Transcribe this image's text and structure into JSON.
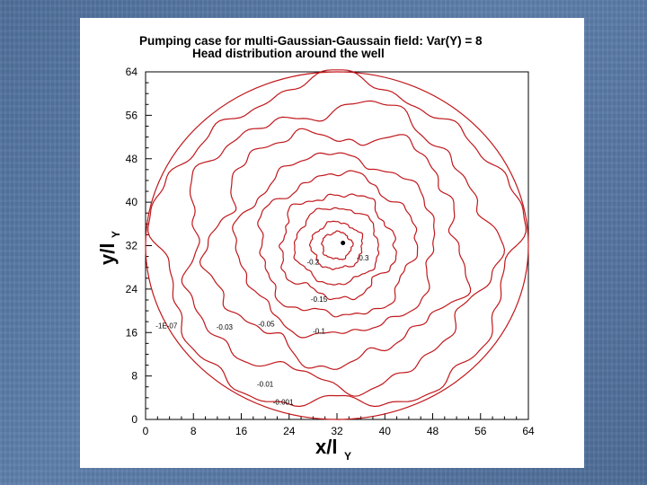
{
  "chart_data": {
    "type": "contour",
    "title": "Pumping case for multi-Gaussian-Gaussain field: Var(Y) = 8",
    "subtitle": "Head distribution around the well",
    "xlabel": "x/l",
    "xlabel_sub": "Y",
    "ylabel": "y/l",
    "ylabel_sub": "Y",
    "xlim": [
      0,
      64
    ],
    "ylim": [
      0,
      64
    ],
    "xticks": [
      0,
      8,
      16,
      24,
      32,
      40,
      48,
      56,
      64
    ],
    "yticks": [
      0,
      8,
      16,
      24,
      32,
      40,
      48,
      56,
      64
    ],
    "grid": false,
    "line_color": "#c0181c",
    "domain_circle": {
      "center": [
        32,
        32
      ],
      "radius": 32
    },
    "well": [
      33,
      32.5
    ],
    "contours": [
      {
        "level": "-1E-07",
        "radius": 30.0,
        "label_at": [
          3.5,
          17.3
        ]
      },
      {
        "level": "-0.001",
        "radius": 25.5,
        "label_at": [
          23.0,
          3.2
        ]
      },
      {
        "level": "-0.01",
        "radius": 21.0,
        "label_at": [
          20.0,
          6.5
        ]
      },
      {
        "level": "-0.03",
        "radius": 16.5,
        "label_at": [
          13.2,
          17.0
        ]
      },
      {
        "level": "-0.05",
        "radius": 13.0,
        "label_at": [
          20.2,
          17.6
        ]
      },
      {
        "level": "-0.1",
        "radius": 9.5,
        "label_at": [
          29.0,
          16.3
        ]
      },
      {
        "level": "-0.15",
        "radius": 7.0,
        "label_at": [
          29.0,
          22.2
        ]
      },
      {
        "level": "-0.2",
        "radius": 4.3,
        "label_at": [
          28.0,
          29.0
        ]
      },
      {
        "level": "-0.3",
        "radius": 2.5,
        "label_at": [
          36.3,
          29.8
        ]
      }
    ]
  }
}
